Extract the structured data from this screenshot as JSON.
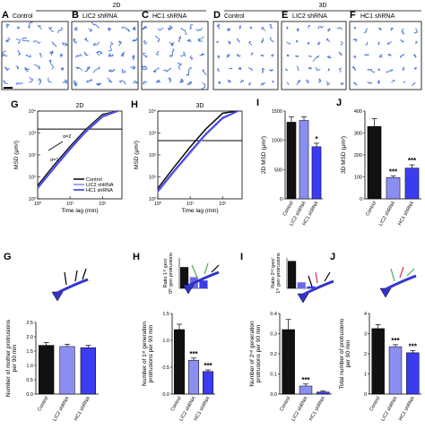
{
  "colors": {
    "control": "#111111",
    "lic2": "#8a8ef0",
    "hc1": "#3b3bf0",
    "track": "#4a78d8",
    "axis": "#000000",
    "mini_bar": "#6a6ae8",
    "neuron_soma": "#3333cc",
    "neuron_green": "#4caf50",
    "neuron_red": "#d83060"
  },
  "header": {
    "label_2d": "2D",
    "label_3d": "3D"
  },
  "track_panels": [
    {
      "letter": "A",
      "title": "Control"
    },
    {
      "letter": "B",
      "title": "LIC2 shRNA"
    },
    {
      "letter": "C",
      "title": "HC1 shRNA"
    },
    {
      "letter": "D",
      "title": "Control"
    },
    {
      "letter": "E",
      "title": "LIC2 shRNA"
    },
    {
      "letter": "F",
      "title": "HC1 shRNA"
    }
  ],
  "panel_G_top": {
    "letter": "G",
    "title": "2D",
    "ylabel": "MSD (μm²)",
    "xlabel": "Time lag (min)",
    "yticks": [
      "10⁴",
      "10³",
      "10²",
      "10¹",
      "10⁰"
    ],
    "xticks": [
      "10⁰",
      "10¹",
      "10²"
    ],
    "alpha2": "α=2",
    "alpha1": "α=1",
    "legend": [
      "Control",
      "LIC2 shRNA",
      "HC1 shRNA"
    ]
  },
  "panel_H_top": {
    "letter": "H",
    "title": "3D",
    "ylabel": "MSD (μm²)",
    "xlabel": "Time lag (min)",
    "yticks": [
      "10⁴",
      "10³",
      "10²",
      "10¹",
      "10⁰"
    ],
    "xticks": [
      "10⁰",
      "10¹",
      "10²"
    ]
  },
  "chart_data": [
    {
      "type": "bar",
      "letter": "I",
      "ylabel": "2D MSD (μm²)",
      "categories": [
        "Control",
        "LIC2 shRNA",
        "HC1 shRNA"
      ],
      "values": [
        1310,
        1340,
        890
      ],
      "errors": [
        90,
        60,
        60
      ],
      "ylim": [
        0,
        1500
      ],
      "yticks": [
        "0",
        "500",
        "1000",
        "1500"
      ],
      "significance": [
        "",
        "",
        "*"
      ]
    },
    {
      "type": "bar",
      "letter": "J",
      "ylabel": "3D MSD (μm²)",
      "categories": [
        "Control",
        "LIC2 shRNA",
        "HC1 shRNA"
      ],
      "values": [
        330,
        97,
        140
      ],
      "errors": [
        35,
        8,
        15
      ],
      "ylim": [
        0,
        400
      ],
      "yticks": [
        "0",
        "100",
        "200",
        "300",
        "400"
      ],
      "significance": [
        "",
        "***",
        "***"
      ]
    },
    {
      "type": "bar",
      "letter": "G",
      "ylabel": "Number of mother protrusions per 90 min",
      "categories": [
        "Control",
        "LIC2 shRNA",
        "HC1 shRNA"
      ],
      "values": [
        1.7,
        1.66,
        1.62
      ],
      "errors": [
        0.1,
        0.08,
        0.08
      ],
      "ylim": [
        0,
        2.5
      ],
      "yticks": [
        "0.0",
        "0.5",
        "1.0",
        "1.5",
        "2.0",
        "2.5"
      ],
      "significance": [
        "",
        "",
        ""
      ]
    },
    {
      "type": "bar",
      "letter": "H",
      "ylabel": "Number of 1ˢᵗ generation protrusions per 90 min",
      "categories": [
        "Control",
        "LIC2 shRNA",
        "HC1 shRNA"
      ],
      "values": [
        1.2,
        0.63,
        0.42
      ],
      "errors": [
        0.1,
        0.04,
        0.03
      ],
      "ylim": [
        0,
        1.5
      ],
      "yticks": [
        "0.0",
        "0.5",
        "1.0",
        "1.5"
      ],
      "significance": [
        "",
        "***",
        "***"
      ],
      "inset": {
        "ylabel": "Ratio 1ˢᵗ gen/ 0ᵗʰ gen protrusions",
        "values": [
          0.7,
          0.37,
          0.26
        ],
        "ylim": [
          0,
          1
        ]
      }
    },
    {
      "type": "bar",
      "letter": "I",
      "ylabel": "Number of 2ⁿᵈ generation protrusions per 90 min",
      "categories": [
        "Control",
        "LIC2 shRNA",
        "HC1 shRNA"
      ],
      "values": [
        0.32,
        0.04,
        0.01
      ],
      "errors": [
        0.05,
        0.01,
        0.005
      ],
      "ylim": [
        0,
        0.4
      ],
      "yticks": [
        "0.0",
        "0.1",
        "0.2",
        "0.3",
        "0.4"
      ],
      "significance": [
        "",
        "***",
        ""
      ],
      "inset": {
        "ylabel": "Ratio 2ⁿᵈ gen/ 1ˢᵗ gen protrusions",
        "values": [
          0.27,
          0.06,
          0.02
        ],
        "ylim": [
          0,
          0.3
        ]
      }
    },
    {
      "type": "bar",
      "letter": "J",
      "ylabel": "Total number of protrusions per 90 min",
      "categories": [
        "Control",
        "LIC2 shRNA",
        "HC1 shRNA"
      ],
      "values": [
        3.25,
        2.35,
        2.05
      ],
      "errors": [
        0.2,
        0.1,
        0.1
      ],
      "ylim": [
        0,
        4
      ],
      "yticks": [
        "0",
        "1",
        "2",
        "3",
        "4"
      ],
      "significance": [
        "",
        "***",
        "***"
      ]
    }
  ],
  "msd_curves": {
    "tau": [
      1,
      3,
      10,
      30,
      100,
      300
    ],
    "top_2d": {
      "control": [
        4,
        30,
        240,
        1400,
        7000,
        20000
      ],
      "lic2": [
        3.2,
        25,
        200,
        1200,
        6000,
        18000
      ],
      "hc1": [
        3,
        22,
        180,
        1100,
        5500,
        16000
      ],
      "plateau": 1500
    },
    "top_3d": {
      "control": [
        3,
        25,
        230,
        1500,
        8000,
        22000
      ],
      "lic2": [
        2,
        15,
        120,
        800,
        4500,
        15000
      ],
      "hc1": [
        2.3,
        17,
        140,
        900,
        5000,
        16000
      ],
      "plateau": 450
    }
  }
}
